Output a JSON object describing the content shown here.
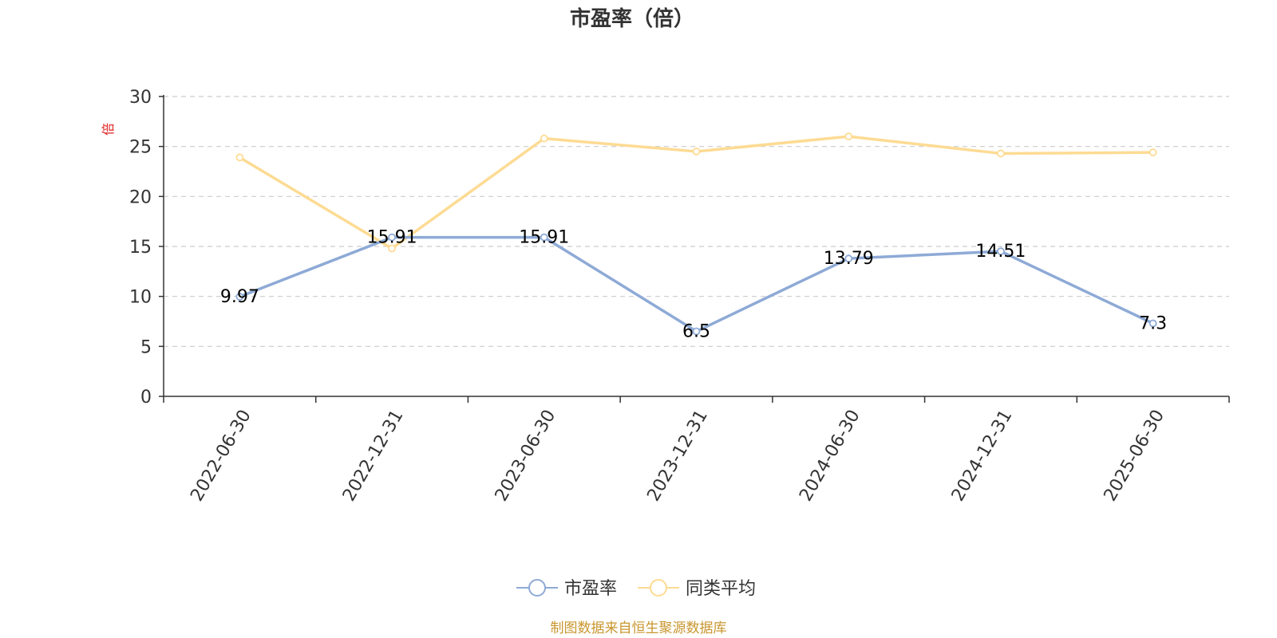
{
  "chart_data": {
    "type": "line",
    "title": "市盈率（倍）",
    "unit": "倍",
    "categories": [
      "2022-06-30",
      "2022-12-31",
      "2023-06-30",
      "2023-12-31",
      "2024-06-30",
      "2024-12-31",
      "2025-06-30"
    ],
    "ylim": [
      0,
      30
    ],
    "yticks": [
      0,
      5,
      10,
      15,
      20,
      25,
      30
    ],
    "grid": true,
    "legend_position": "bottom-center",
    "series": [
      {
        "name": "市盈率",
        "color": "#8eaad6",
        "values": [
          9.97,
          15.91,
          15.91,
          6.5,
          13.79,
          14.51,
          7.3
        ],
        "labels": [
          "9.97",
          "15.91",
          "15.91",
          "6.5",
          "13.79",
          "14.51",
          "7.3"
        ],
        "show_labels": true
      },
      {
        "name": "同类平均",
        "color": "#fddb93",
        "values": [
          23.9,
          14.8,
          25.8,
          24.5,
          26.0,
          24.3,
          24.4
        ],
        "show_labels": false
      }
    ]
  },
  "source_note": "制图数据来自恒生聚源数据库"
}
